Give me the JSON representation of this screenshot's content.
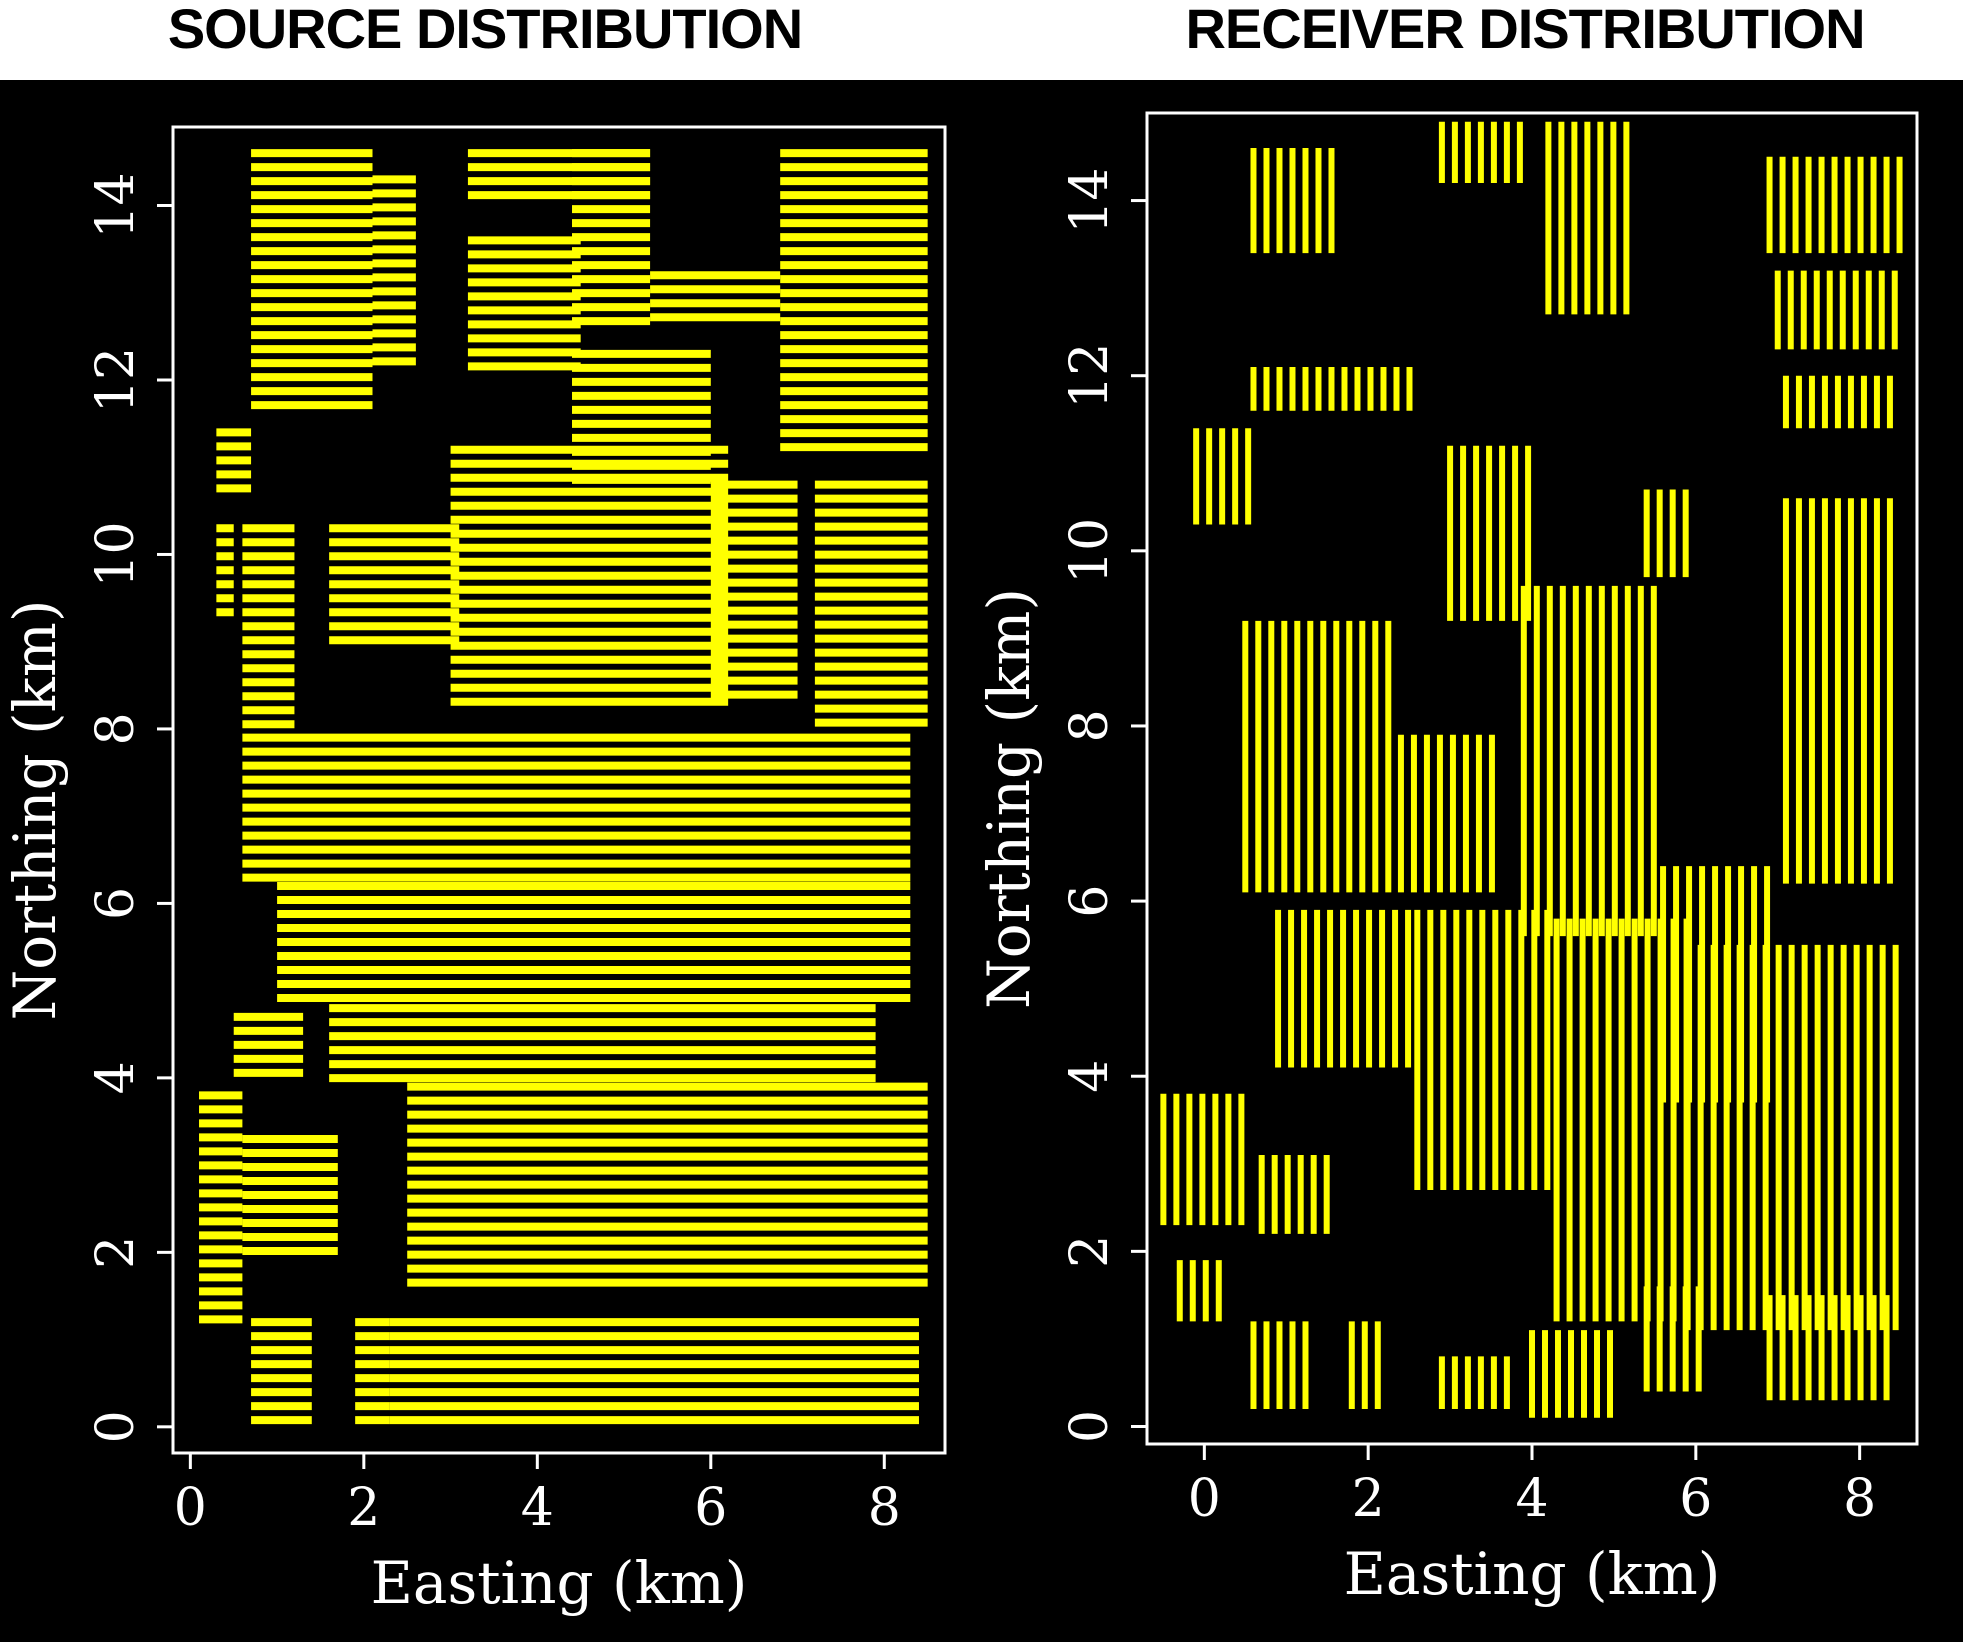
{
  "titles": {
    "left": "SOURCE DISTRIBUTION",
    "right": "RECEIVER DISTRIBUTION"
  },
  "colors": {
    "background": "#000000",
    "axis": "#ffffff",
    "points": "#ffff00"
  },
  "chart_data": [
    {
      "type": "scatter",
      "title": "SOURCE DISTRIBUTION",
      "xlabel": "Easting (km)",
      "ylabel": "Northing (km)",
      "xlim": [
        -0.2,
        8.7
      ],
      "ylim": [
        -0.3,
        14.9
      ],
      "xticks": [
        0,
        2,
        4,
        6,
        8
      ],
      "yticks": [
        0,
        2,
        4,
        6,
        8,
        10,
        12,
        14
      ],
      "grid": false,
      "pattern": "east-west source lines spaced ~0.2 km",
      "regions": [
        {
          "x": [
            0.7,
            2.1
          ],
          "y": [
            11.6,
            14.6
          ]
        },
        {
          "x": [
            2.1,
            2.6
          ],
          "y": [
            12.2,
            14.3
          ]
        },
        {
          "x": [
            3.2,
            4.5
          ],
          "y": [
            12.0,
            13.6
          ]
        },
        {
          "x": [
            3.2,
            5.3
          ],
          "y": [
            14.0,
            14.6
          ]
        },
        {
          "x": [
            4.4,
            5.3
          ],
          "y": [
            12.6,
            14.6
          ]
        },
        {
          "x": [
            5.3,
            6.8
          ],
          "y": [
            12.6,
            13.2
          ]
        },
        {
          "x": [
            6.8,
            8.5
          ],
          "y": [
            11.2,
            14.6
          ]
        },
        {
          "x": [
            4.4,
            6.0
          ],
          "y": [
            10.7,
            12.3
          ]
        },
        {
          "x": [
            3.0,
            6.2
          ],
          "y": [
            8.2,
            11.2
          ]
        },
        {
          "x": [
            0.3,
            0.7
          ],
          "y": [
            10.7,
            11.4
          ]
        },
        {
          "x": [
            0.3,
            0.5
          ],
          "y": [
            9.3,
            10.3
          ]
        },
        {
          "x": [
            0.6,
            1.2
          ],
          "y": [
            8.0,
            10.3
          ]
        },
        {
          "x": [
            1.6,
            3.1
          ],
          "y": [
            9.0,
            10.3
          ]
        },
        {
          "x": [
            7.2,
            8.5
          ],
          "y": [
            8.0,
            10.8
          ]
        },
        {
          "x": [
            6.0,
            7.0
          ],
          "y": [
            8.3,
            10.8
          ]
        },
        {
          "x": [
            0.6,
            8.3
          ],
          "y": [
            6.2,
            7.9
          ]
        },
        {
          "x": [
            1.0,
            8.3
          ],
          "y": [
            4.8,
            6.2
          ]
        },
        {
          "x": [
            0.5,
            1.3
          ],
          "y": [
            3.9,
            4.7
          ]
        },
        {
          "x": [
            1.6,
            7.9
          ],
          "y": [
            3.9,
            4.8
          ]
        },
        {
          "x": [
            0.1,
            0.6
          ],
          "y": [
            1.2,
            3.8
          ]
        },
        {
          "x": [
            0.6,
            1.7
          ],
          "y": [
            2.0,
            3.3
          ]
        },
        {
          "x": [
            2.5,
            8.5
          ],
          "y": [
            1.5,
            3.9
          ]
        },
        {
          "x": [
            0.7,
            1.4
          ],
          "y": [
            0.0,
            1.2
          ]
        },
        {
          "x": [
            1.9,
            2.3
          ],
          "y": [
            0.0,
            1.2
          ]
        },
        {
          "x": [
            2.3,
            8.4
          ],
          "y": [
            0.0,
            1.2
          ]
        }
      ]
    },
    {
      "type": "scatter",
      "title": "RECEIVER DISTRIBUTION",
      "xlabel": "Easting (km)",
      "ylabel": "Northing (km)",
      "xlim": [
        -0.7,
        8.7
      ],
      "ylim": [
        -0.2,
        15.0
      ],
      "xticks": [
        0,
        2,
        4,
        6,
        8
      ],
      "yticks": [
        0,
        2,
        4,
        6,
        8,
        10,
        12,
        14
      ],
      "grid": false,
      "pattern": "north-south receiver lines",
      "regions": [
        {
          "x": [
            0.6,
            1.7
          ],
          "y": [
            13.4,
            14.6
          ]
        },
        {
          "x": [
            2.9,
            3.9
          ],
          "y": [
            14.2,
            14.9
          ]
        },
        {
          "x": [
            4.2,
            5.2
          ],
          "y": [
            12.7,
            14.9
          ]
        },
        {
          "x": [
            6.9,
            8.5
          ],
          "y": [
            13.4,
            14.5
          ]
        },
        {
          "x": [
            7.0,
            8.5
          ],
          "y": [
            12.3,
            13.2
          ]
        },
        {
          "x": [
            0.6,
            2.6
          ],
          "y": [
            11.6,
            12.1
          ]
        },
        {
          "x": [
            7.1,
            8.5
          ],
          "y": [
            11.4,
            12.0
          ]
        },
        {
          "x": [
            -0.1,
            0.6
          ],
          "y": [
            10.3,
            11.4
          ]
        },
        {
          "x": [
            3.0,
            4.0
          ],
          "y": [
            9.2,
            11.2
          ]
        },
        {
          "x": [
            5.4,
            6.0
          ],
          "y": [
            9.7,
            10.7
          ]
        },
        {
          "x": [
            7.1,
            8.5
          ],
          "y": [
            6.2,
            10.6
          ]
        },
        {
          "x": [
            0.5,
            2.3
          ],
          "y": [
            6.1,
            9.2
          ]
        },
        {
          "x": [
            2.4,
            3.6
          ],
          "y": [
            6.1,
            7.9
          ]
        },
        {
          "x": [
            3.9,
            5.6
          ],
          "y": [
            5.6,
            9.6
          ]
        },
        {
          "x": [
            5.6,
            7.0
          ],
          "y": [
            3.7,
            6.4
          ]
        },
        {
          "x": [
            0.9,
            2.6
          ],
          "y": [
            4.1,
            5.9
          ]
        },
        {
          "x": [
            2.6,
            4.3
          ],
          "y": [
            2.7,
            5.9
          ]
        },
        {
          "x": [
            4.3,
            5.9
          ],
          "y": [
            1.2,
            5.8
          ]
        },
        {
          "x": [
            5.9,
            8.5
          ],
          "y": [
            1.1,
            5.5
          ]
        },
        {
          "x": [
            -0.5,
            0.6
          ],
          "y": [
            2.3,
            3.8
          ]
        },
        {
          "x": [
            0.7,
            1.6
          ],
          "y": [
            2.2,
            3.1
          ]
        },
        {
          "x": [
            -0.3,
            0.3
          ],
          "y": [
            1.2,
            1.9
          ]
        },
        {
          "x": [
            0.6,
            1.3
          ],
          "y": [
            0.2,
            1.2
          ]
        },
        {
          "x": [
            1.8,
            2.2
          ],
          "y": [
            0.2,
            1.2
          ]
        },
        {
          "x": [
            2.9,
            3.8
          ],
          "y": [
            0.2,
            0.8
          ]
        },
        {
          "x": [
            4.0,
            5.1
          ],
          "y": [
            0.1,
            1.1
          ]
        },
        {
          "x": [
            5.4,
            6.1
          ],
          "y": [
            0.4,
            1.6
          ]
        },
        {
          "x": [
            6.9,
            8.4
          ],
          "y": [
            0.3,
            1.5
          ]
        }
      ]
    }
  ]
}
